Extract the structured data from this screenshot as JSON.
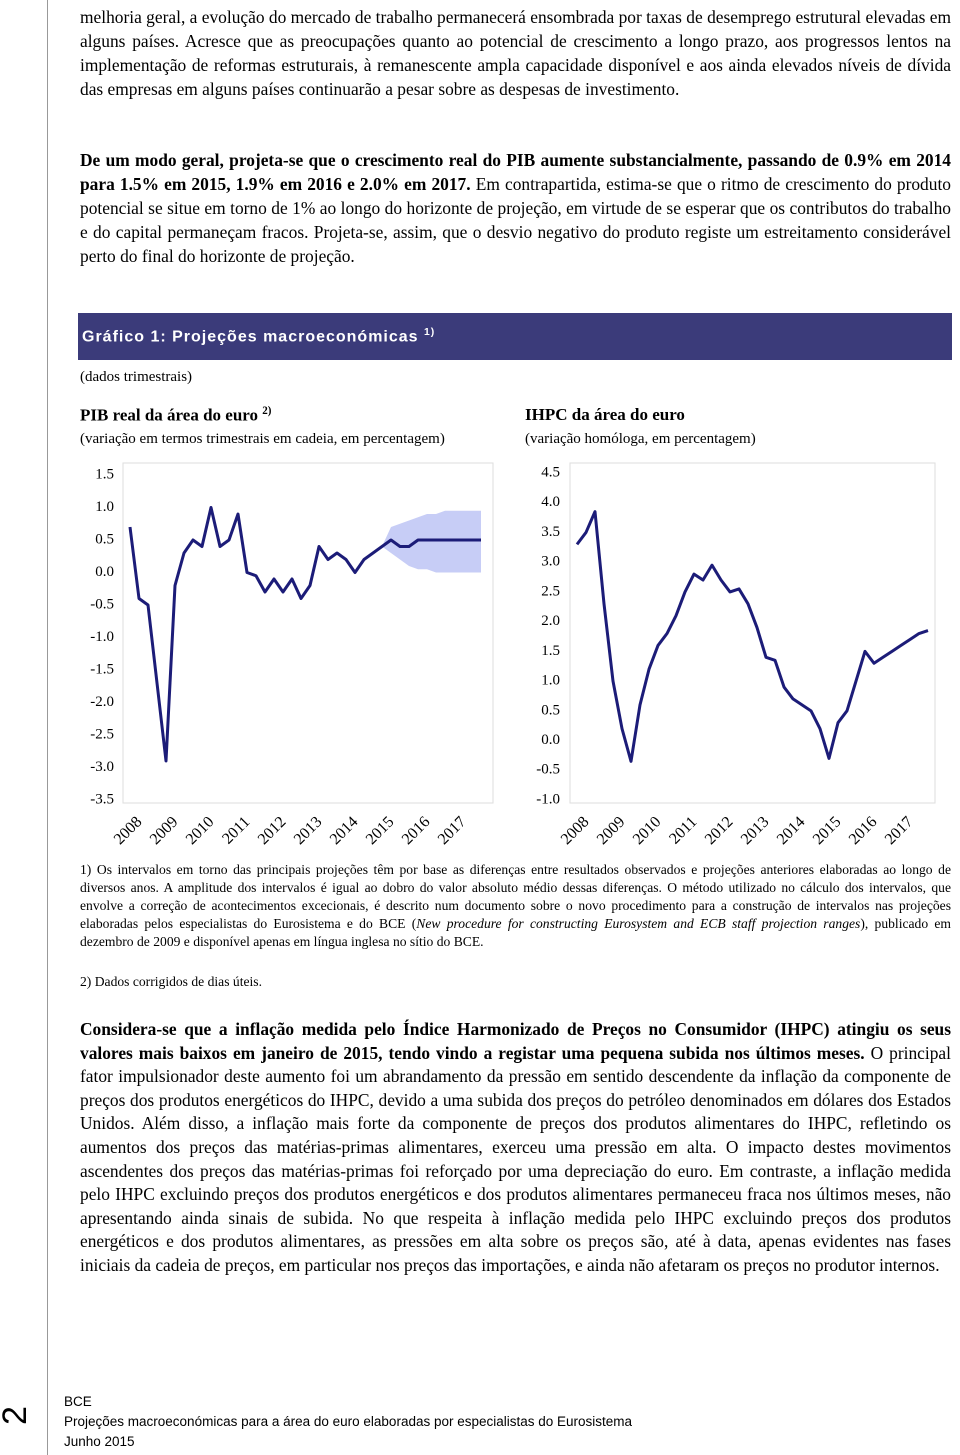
{
  "paragraphs": [
    {
      "text": "melhoria geral, a evolução do mercado de trabalho permanecerá ensombrada por taxas de desemprego estrutural elevadas em alguns países. Acresce que as preocupações quanto ao potencial de crescimento a longo prazo, aos progressos lentos na implementação de reformas estruturais, à remanescente ampla capacidade disponível e aos ainda elevados níveis de dívida das empresas em alguns países continuarão a pesar sobre as despesas de investimento."
    },
    {
      "bold": "De um modo geral, projeta-se que o crescimento real do PIB aumente substancialmente, passando de 0.9% em 2014 para 1.5% em 2015, 1.9% em 2016 e 2.0% em 2017.",
      "text": " Em contrapartida, estima-se que o ritmo de crescimento do produto potencial se situe em torno de 1% ao longo do horizonte de projeção, em virtude de se esperar que os contributos do trabalho e do capital permaneçam fracos. Projeta-se, assim, que o desvio negativo do produto registe um estreitamento considerável perto do final do horizonte de projeção."
    },
    {
      "bold": "Considera-se que a inflação medida pelo Índice Harmonizado de Preços no Consumidor (IHPC) atingiu os seus valores mais baixos em janeiro de 2015, tendo vindo a registar uma pequena subida nos últimos meses.",
      "text": " O principal fator impulsionador deste aumento foi um abrandamento da pressão em sentido descendente da inflação da componente de preços dos produtos energéticos do IHPC, devido a uma subida dos preços do petróleo denominados em dólares dos Estados Unidos. Além disso, a inflação mais forte da componente de preços dos produtos alimentares do IHPC, refletindo os aumentos dos preços das matérias-primas alimentares, exerceu uma pressão em alta. O impacto destes movimentos ascendentes dos preços das matérias-primas foi reforçado por uma depreciação do euro. Em contraste, a inflação medida pelo IHPC excluindo preços dos produtos energéticos e dos produtos alimentares permaneceu fraca nos últimos meses, não apresentando ainda sinais de subida. No que respeita à inflação medida pelo IHPC excluindo preços dos produtos energéticos e dos produtos alimentares, as pressões em alta sobre os preços são, até à data, apenas evidentes nas fases iniciais da cadeia de preços, em particular nos preços das importações, e ainda não afetaram os preços no produtor internos."
    }
  ],
  "figure": {
    "title": "Gráfico 1: Projeções macroeconómicas",
    "title_note": "1)",
    "subtitle": "(dados trimestrais)",
    "charts": [
      {
        "type": "line",
        "title": "PIB real da área do euro",
        "title_note": "2)",
        "subtitle": "(variação em termos trimestrais em cadeia, em percentagem)",
        "categories": [
          "2008",
          "2009",
          "2010",
          "2011",
          "2012",
          "2013",
          "2014",
          "2015",
          "2016",
          "2017"
        ],
        "ylim": [
          -3.5,
          1.5
        ],
        "yticks": [
          1.5,
          {
            "value": 1,
            "label": "1.0"
          },
          0.5,
          {
            "value": 0,
            "label": "0.0"
          },
          -0.5,
          {
            "value": -1,
            "label": "-1.0"
          },
          -1.5,
          {
            "value": -2,
            "label": "-2.0"
          },
          -2.5,
          {
            "value": -3,
            "label": "-3.0"
          },
          -3.5
        ],
        "series": [
          {
            "color": "#1c1c78",
            "values": [
              0.7,
              -0.4,
              -0.5,
              -1.7,
              -2.9,
              -0.2,
              0.3,
              0.5,
              0.4,
              1.0,
              0.4,
              0.5,
              0.9,
              0.0,
              -0.05,
              -0.3,
              -0.1,
              -0.3,
              -0.1,
              -0.4,
              -0.2,
              0.4,
              0.2,
              0.3,
              0.2,
              0.0,
              0.2,
              0.3,
              0.4,
              0.5,
              0.4,
              0.4,
              0.5,
              0.5,
              0.5,
              0.5,
              0.5,
              0.5,
              0.5,
              0.5
            ]
          }
        ],
        "band": {
          "color": "#c7cdf6",
          "low": [
            null,
            null,
            null,
            null,
            null,
            null,
            null,
            null,
            null,
            null,
            null,
            null,
            null,
            null,
            null,
            null,
            null,
            null,
            null,
            null,
            null,
            null,
            null,
            null,
            null,
            null,
            null,
            null,
            0.4,
            0.3,
            0.2,
            0.1,
            0.05,
            0.05,
            0.0,
            0.0,
            0.0,
            0.0,
            0.0,
            0.0
          ],
          "high": [
            null,
            null,
            null,
            null,
            null,
            null,
            null,
            null,
            null,
            null,
            null,
            null,
            null,
            null,
            null,
            null,
            null,
            null,
            null,
            null,
            null,
            null,
            null,
            null,
            null,
            null,
            null,
            null,
            0.4,
            0.7,
            0.75,
            0.8,
            0.85,
            0.9,
            0.9,
            0.95,
            0.95,
            0.95,
            0.95,
            0.95
          ]
        }
      },
      {
        "type": "line",
        "title": "IHPC da área do euro",
        "subtitle": "(variação homóloga, em percentagem)",
        "categories": [
          "2008",
          "2009",
          "2010",
          "2011",
          "2012",
          "2013",
          "2014",
          "2015",
          "2016",
          "2017"
        ],
        "ylim": [
          -1,
          4.5
        ],
        "yticks": [
          4.5,
          {
            "value": 4,
            "label": "4.0"
          },
          3.5,
          {
            "value": 3,
            "label": "3.0"
          },
          2.5,
          {
            "value": 2,
            "label": "2.0"
          },
          1.5,
          {
            "value": 1,
            "label": "1.0"
          },
          0.5,
          {
            "value": 0,
            "label": "0.0"
          },
          -0.5,
          {
            "value": -1,
            "label": "-1.0"
          }
        ],
        "series": [
          {
            "color": "#1c1c78",
            "values": [
              3.3,
              3.5,
              3.85,
              2.3,
              1.0,
              0.2,
              -0.35,
              0.6,
              1.2,
              1.6,
              1.8,
              2.1,
              2.5,
              2.8,
              2.7,
              2.95,
              2.7,
              2.5,
              2.55,
              2.3,
              1.9,
              1.4,
              1.35,
              0.9,
              0.7,
              0.6,
              0.5,
              0.2,
              -0.3,
              0.3,
              0.5,
              1.0,
              1.5,
              1.3,
              1.4,
              1.5,
              1.6,
              1.7,
              1.8,
              1.85
            ]
          }
        ]
      }
    ],
    "footnotes": [
      {
        "text": "1) Os intervalos em torno das principais projeções têm por base as diferenças entre resultados observados e projeções anteriores elaboradas ao longo de diversos anos. A amplitude dos intervalos é igual ao dobro do valor absoluto médio dessas diferenças. O método utilizado no cálculo dos intervalos, que envolve a correção de acontecimentos excecionais, é descrito num documento sobre o novo procedimento para a construção de intervalos nas projeções elaboradas pelos especialistas do Eurosistema e do BCE (",
        "italic": "New procedure for constructing Eurosystem and ECB staff projection ranges",
        "text_after": "), publicado em dezembro de 2009 e disponível apenas em língua inglesa no sítio do BCE."
      },
      {
        "text": "2) Dados corrigidos de dias úteis."
      }
    ]
  },
  "footer": {
    "page": "2",
    "lines": [
      "BCE",
      "Projeções macroeconómicas para a área do euro elaboradas por especialistas do Eurosistema",
      "Junho 2015"
    ]
  }
}
